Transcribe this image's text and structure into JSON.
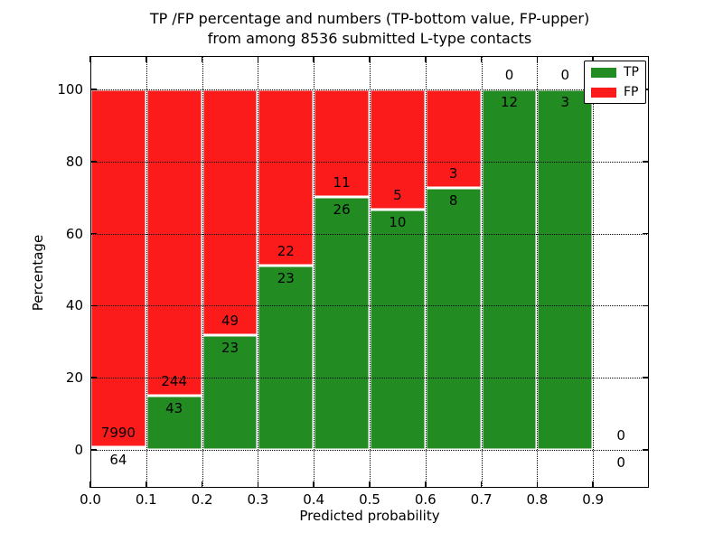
{
  "chart_data": {
    "type": "bar",
    "stacked": true,
    "orientation": "vertical",
    "title": "TP /FP percentage and numbers (TP-bottom value, FP-upper)",
    "subtitle": "from among 8536 submitted L-type contacts",
    "xlabel": "Predicted probability",
    "ylabel": "Percentage",
    "xlim": [
      0.0,
      1.0
    ],
    "ylim": [
      -10,
      109
    ],
    "grid": "dotted black, horizontal and vertical, drawn over bars",
    "xticks": [
      "0.0",
      "0.1",
      "0.2",
      "0.3",
      "0.4",
      "0.5",
      "0.6",
      "0.7",
      "0.8",
      "0.9"
    ],
    "yticks": [
      "0",
      "20",
      "40",
      "60",
      "80",
      "100"
    ],
    "colors": {
      "tp": "#228b22",
      "fp": "#fb1b1b",
      "bar_edge": "#ffffff"
    },
    "legend": {
      "position": "upper right",
      "entries": [
        {
          "label": "TP",
          "color": "#228b22"
        },
        {
          "label": "FP",
          "color": "#fb1b1b"
        }
      ]
    },
    "annotation_note": "TP count printed below segment boundary, FP count printed above it",
    "bins": [
      {
        "x_start": 0.0,
        "x_end": 0.1,
        "tp": 64,
        "fp": 7990,
        "tp_pct": 0.79
      },
      {
        "x_start": 0.1,
        "x_end": 0.2,
        "tp": 43,
        "fp": 244,
        "tp_pct": 14.98
      },
      {
        "x_start": 0.2,
        "x_end": 0.3,
        "tp": 23,
        "fp": 49,
        "tp_pct": 31.94
      },
      {
        "x_start": 0.3,
        "x_end": 0.4,
        "tp": 23,
        "fp": 22,
        "tp_pct": 51.11
      },
      {
        "x_start": 0.4,
        "x_end": 0.5,
        "tp": 26,
        "fp": 11,
        "tp_pct": 70.27
      },
      {
        "x_start": 0.5,
        "x_end": 0.6,
        "tp": 10,
        "fp": 5,
        "tp_pct": 66.67
      },
      {
        "x_start": 0.6,
        "x_end": 0.7,
        "tp": 8,
        "fp": 3,
        "tp_pct": 72.73
      },
      {
        "x_start": 0.7,
        "x_end": 0.8,
        "tp": 12,
        "fp": 0,
        "tp_pct": 100
      },
      {
        "x_start": 0.8,
        "x_end": 0.9,
        "tp": 3,
        "fp": 0,
        "tp_pct": 100
      },
      {
        "x_start": 0.9,
        "x_end": 1.0,
        "tp": 0,
        "fp": 0,
        "tp_pct": 0
      }
    ]
  }
}
